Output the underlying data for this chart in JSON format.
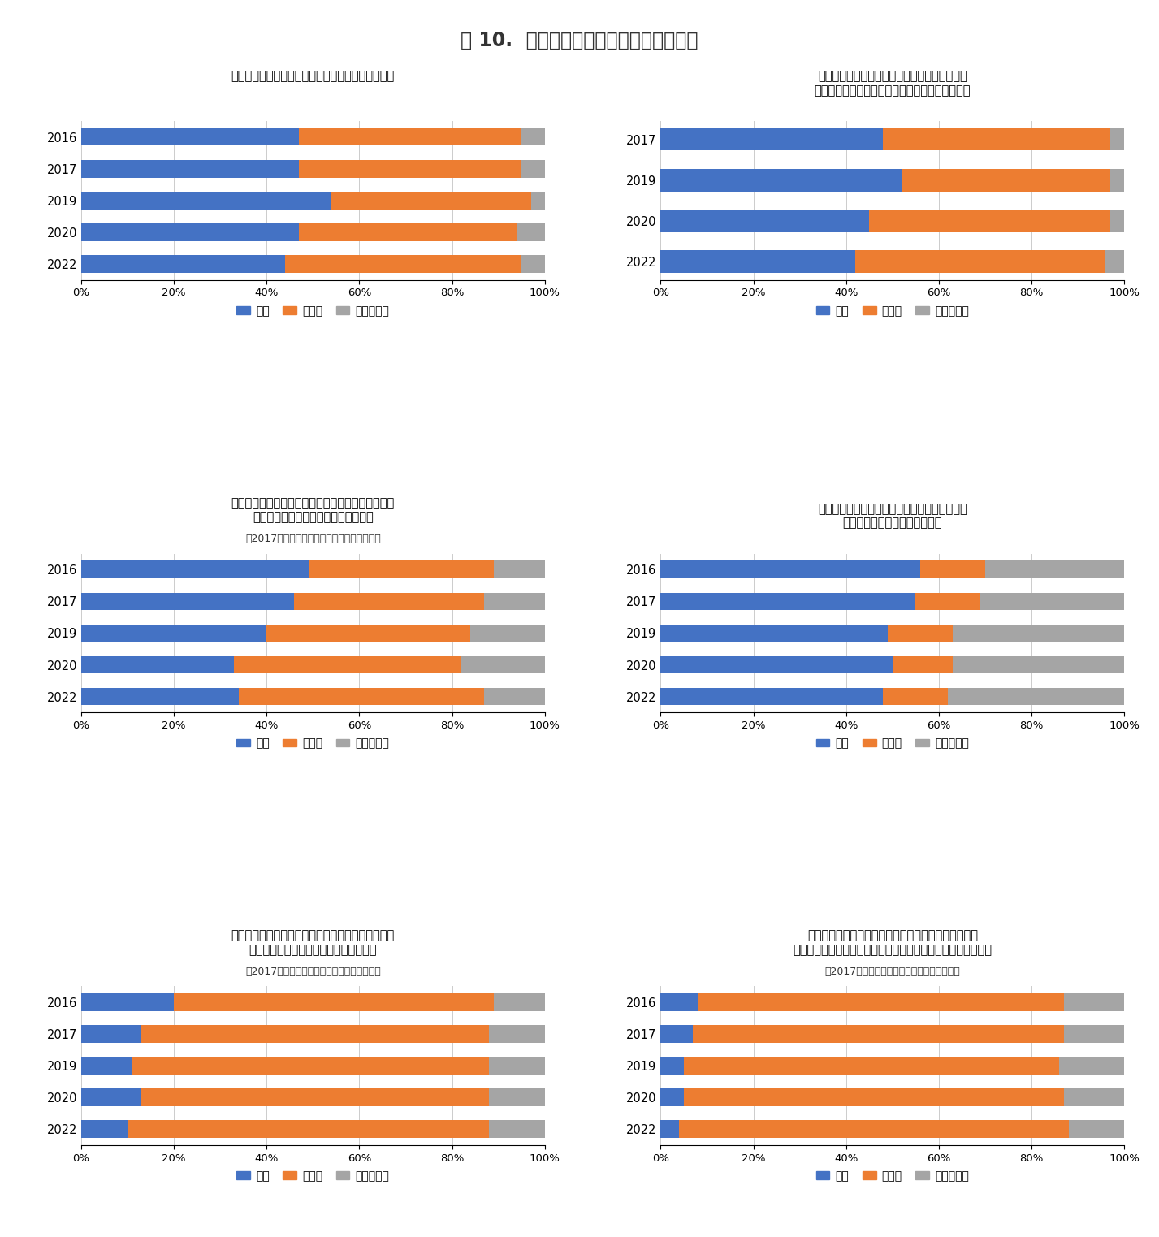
{
  "title": "図 10.  避難先住民の方との関係について",
  "color_hai": "#4472C4",
  "color_iie": "#ED7D31",
  "color_wakaranai": "#A5A5A5",
  "charts": [
    {
      "title_lines": [
        "現在の避難先の住民と交流する機会がありますか？"
      ],
      "subtitle": null,
      "years": [
        "2016",
        "2017",
        "2019",
        "2020",
        "2022"
      ],
      "hai": [
        47,
        47,
        54,
        47,
        44
      ],
      "iie": [
        48,
        48,
        43,
        47,
        51
      ],
      "wakaranai": [
        5,
        5,
        3,
        6,
        5
      ]
    },
    {
      "title_lines": [
        "現在の避難先の地区で行われている行事や会合",
        "（お祭りや一斉掃除など）に参加していますか？"
      ],
      "subtitle": null,
      "years": [
        "2017",
        "2019",
        "2020",
        "2022"
      ],
      "hai": [
        48,
        52,
        45,
        42
      ],
      "iie": [
        49,
        45,
        52,
        54
      ],
      "wakaranai": [
        3,
        3,
        3,
        4
      ]
    },
    {
      "title_lines": [
        "現在の避難先の住民に双葉町民であることを隠した",
        "方が良いと感じたことがありますか？"
      ],
      "subtitle": "（2017以降については現在も感じますか？）",
      "years": [
        "2016",
        "2017",
        "2019",
        "2020",
        "2022"
      ],
      "hai": [
        49,
        46,
        40,
        33,
        34
      ],
      "iie": [
        40,
        41,
        44,
        49,
        53
      ],
      "wakaranai": [
        11,
        13,
        16,
        18,
        13
      ]
    },
    {
      "title_lines": [
        "現在避難先の近隣住民の方はあなたが双葉町民",
        "であることを知っていますか？"
      ],
      "subtitle": null,
      "years": [
        "2016",
        "2017",
        "2019",
        "2020",
        "2022"
      ],
      "hai": [
        56,
        55,
        49,
        50,
        48
      ],
      "iie": [
        14,
        14,
        14,
        13,
        14
      ],
      "wakaranai": [
        30,
        31,
        37,
        37,
        38
      ]
    },
    {
      "title_lines": [
        "現在の避難されている場所でゴミ出しについて気が",
        "引ける思いをされたことがありますか？"
      ],
      "subtitle": "（2017以降については現在も感じますか？）",
      "years": [
        "2016",
        "2017",
        "2019",
        "2020",
        "2022"
      ],
      "hai": [
        20,
        13,
        11,
        13,
        10
      ],
      "iie": [
        69,
        75,
        77,
        75,
        78
      ],
      "wakaranai": [
        11,
        12,
        12,
        12,
        12
      ]
    },
    {
      "title_lines": [
        "現在の避難先の地区の住民に双葉町民であるために悪",
        "口を言われたり、いたずらをされたりしたことはありますか？"
      ],
      "subtitle": "（2017以降については現在もありますか？）",
      "years": [
        "2016",
        "2017",
        "2019",
        "2020",
        "2022"
      ],
      "hai": [
        8,
        7,
        5,
        5,
        4
      ],
      "iie": [
        79,
        80,
        81,
        82,
        84
      ],
      "wakaranai": [
        13,
        13,
        14,
        13,
        12
      ]
    }
  ]
}
